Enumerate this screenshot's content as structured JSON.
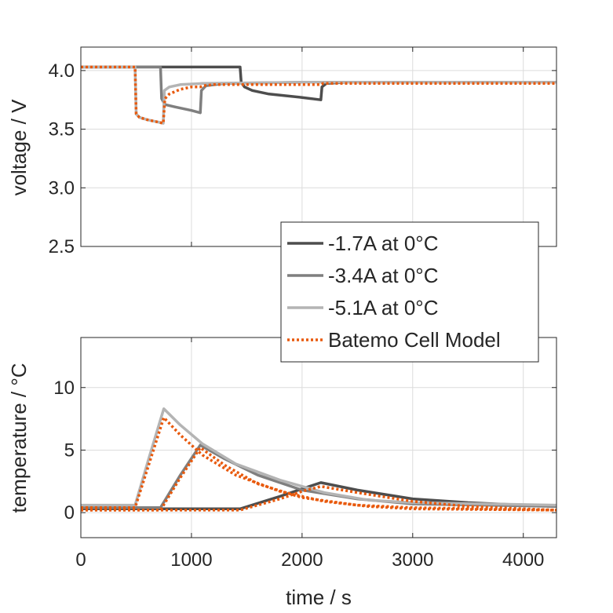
{
  "chart_data": [
    {
      "type": "line",
      "ylabel": "voltage / V",
      "xlabel": "",
      "xlim": [
        0,
        4300
      ],
      "ylim": [
        2.5,
        4.2
      ],
      "yticks": [
        2.5,
        3.0,
        3.5,
        4.0
      ],
      "ytick_labels": [
        "2.5",
        "3.0",
        "3.5",
        "4.0"
      ],
      "xticks": [
        0,
        1000,
        2000,
        3000,
        4000
      ],
      "grid": true,
      "legend_position": "bottom-right",
      "series": [
        {
          "name": "-1.7A at 0°C",
          "color": "#4d4d4d",
          "style": "solid",
          "x": [
            0,
            1440,
            1450,
            1480,
            1550,
            1700,
            2000,
            2170,
            2180,
            2220,
            2400,
            3000,
            4300
          ],
          "y": [
            4.03,
            4.03,
            3.9,
            3.86,
            3.83,
            3.8,
            3.77,
            3.75,
            3.86,
            3.89,
            3.9,
            3.9,
            3.9
          ]
        },
        {
          "name": "-3.4A at 0°C",
          "color": "#7f7f7f",
          "style": "solid",
          "x": [
            0,
            720,
            730,
            760,
            850,
            1000,
            1080,
            1090,
            1130,
            1300,
            2000,
            4300
          ],
          "y": [
            4.03,
            4.03,
            3.76,
            3.71,
            3.69,
            3.66,
            3.64,
            3.83,
            3.87,
            3.89,
            3.9,
            3.9
          ]
        },
        {
          "name": "-5.1A at 0°C",
          "color": "#b4b4b4",
          "style": "solid",
          "x": [
            0,
            490,
            500,
            530,
            600,
            700,
            745,
            755,
            800,
            900,
            1100,
            2000,
            4300
          ],
          "y": [
            4.03,
            4.03,
            3.63,
            3.6,
            3.58,
            3.56,
            3.55,
            3.83,
            3.86,
            3.88,
            3.89,
            3.9,
            3.9
          ]
        },
        {
          "name": "Batemo Cell Model",
          "color": "#e8590c",
          "style": "dotted",
          "x": [
            0,
            490,
            500,
            530,
            600,
            700,
            745,
            760,
            800,
            900,
            1000,
            1080,
            1100,
            1200,
            1440,
            1460,
            1600,
            2000,
            2170,
            2190,
            2300,
            3000,
            4300
          ],
          "y": [
            4.03,
            4.03,
            3.63,
            3.6,
            3.58,
            3.56,
            3.55,
            3.76,
            3.8,
            3.84,
            3.86,
            3.86,
            3.87,
            3.88,
            3.88,
            3.88,
            3.88,
            3.88,
            3.88,
            3.89,
            3.89,
            3.89,
            3.89
          ]
        }
      ]
    },
    {
      "type": "line",
      "ylabel": "temperature / °C",
      "xlabel": "time / s",
      "xlim": [
        0,
        4300
      ],
      "ylim": [
        -2,
        14
      ],
      "yticks": [
        0,
        5,
        10
      ],
      "ytick_labels": [
        "0",
        "5",
        "10"
      ],
      "xticks": [
        0,
        1000,
        2000,
        3000,
        4000
      ],
      "xtick_labels": [
        "0",
        "1000",
        "2000",
        "3000",
        "4000"
      ],
      "grid": true,
      "series": [
        {
          "name": "-1.7A at 0°C",
          "color": "#4d4d4d",
          "style": "solid",
          "x": [
            0,
            1440,
            1800,
            2000,
            2170,
            2500,
            3000,
            3500,
            4000,
            4300
          ],
          "y": [
            0.3,
            0.3,
            1.3,
            1.9,
            2.4,
            1.8,
            1.1,
            0.8,
            0.6,
            0.5
          ]
        },
        {
          "name": "-3.4A at 0°C",
          "color": "#7f7f7f",
          "style": "solid",
          "x": [
            0,
            720,
            900,
            1080,
            1300,
            1600,
            2000,
            2500,
            3000,
            4300
          ],
          "y": [
            0.4,
            0.4,
            3.0,
            5.4,
            4.3,
            3.0,
            1.8,
            1.1,
            0.7,
            0.5
          ]
        },
        {
          "name": "-5.1A at 0°C",
          "color": "#b4b4b4",
          "style": "solid",
          "x": [
            0,
            490,
            620,
            750,
            900,
            1100,
            1400,
            1800,
            2200,
            2600,
            3000,
            4300
          ],
          "y": [
            0.6,
            0.6,
            4.5,
            8.3,
            7.0,
            5.5,
            3.9,
            2.6,
            1.6,
            1.0,
            0.8,
            0.6
          ]
        },
        {
          "name": "Batemo Cell Model",
          "color": "#e8590c",
          "style": "dotted",
          "x": [
            0,
            490,
            620,
            750,
            900,
            1100,
            1400,
            1800,
            2200,
            2600,
            3000,
            4300
          ],
          "y": [
            0.4,
            0.4,
            4.0,
            7.6,
            6.2,
            4.6,
            3.0,
            1.7,
            0.9,
            0.5,
            0.3,
            0.2
          ]
        },
        {
          "name": "Batemo Cell Model",
          "color": "#e8590c",
          "style": "dotted",
          "x": [
            0,
            720,
            900,
            1080,
            1300,
            1600,
            2000,
            2500,
            3000,
            4300
          ],
          "y": [
            0.2,
            0.2,
            2.8,
            5.2,
            3.8,
            2.3,
            1.2,
            0.6,
            0.4,
            0.2
          ]
        },
        {
          "name": "Batemo Cell Model",
          "color": "#e8590c",
          "style": "dotted",
          "x": [
            0,
            1440,
            1800,
            2000,
            2170,
            2500,
            3000,
            3500,
            4000,
            4300
          ],
          "y": [
            0.2,
            0.2,
            1.1,
            1.7,
            2.1,
            1.6,
            0.9,
            0.5,
            0.3,
            0.2
          ]
        }
      ]
    }
  ],
  "legend": [
    {
      "label": "-1.7A at 0°C",
      "color": "#4d4d4d",
      "style": "solid"
    },
    {
      "label": "-3.4A at 0°C",
      "color": "#7f7f7f",
      "style": "solid"
    },
    {
      "label": "-5.1A at 0°C",
      "color": "#b4b4b4",
      "style": "solid"
    },
    {
      "label": "Batemo Cell Model",
      "color": "#e8590c",
      "style": "dotted"
    }
  ]
}
